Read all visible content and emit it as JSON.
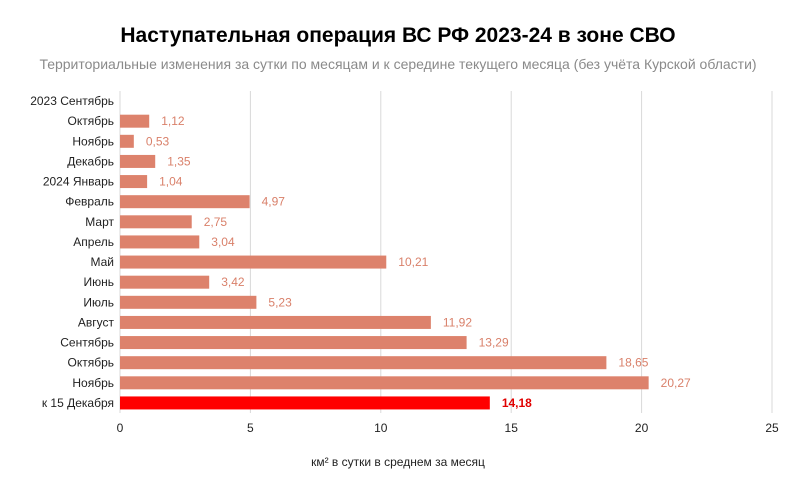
{
  "chart_data": {
    "type": "bar",
    "orientation": "horizontal",
    "title": "Наступательная операция ВС РФ 2023-24 в зоне СВО",
    "subtitle": "Территориальные изменения за сутки по месяцам и к середине текущего месяца (без учёта Курской области)",
    "xlabel": "км² в сутки в среднем за месяц",
    "ylabel": "",
    "xlim": [
      0,
      25
    ],
    "xticks": [
      "0",
      "5",
      "10",
      "15",
      "20",
      "25"
    ],
    "grid": true,
    "categories": [
      "2023 Сентябрь",
      "Октябрь",
      "Ноябрь",
      "Декабрь",
      "2024 Январь",
      "Февраль",
      "Март",
      "Апрель",
      "Май",
      "Июнь",
      "Июль",
      "Август",
      "Сентябрь",
      "Октябрь",
      "Ноябрь",
      "к 15 Декабря"
    ],
    "values": [
      0,
      1.12,
      0.53,
      1.35,
      1.04,
      4.97,
      2.75,
      3.04,
      10.21,
      3.42,
      5.23,
      11.92,
      13.29,
      18.65,
      20.27,
      14.18
    ],
    "value_labels": [
      "",
      "1,12",
      "0,53",
      "1,35",
      "1,04",
      "4,97",
      "2,75",
      "3,04",
      "10,21",
      "3,42",
      "5,23",
      "11,92",
      "13,29",
      "18,65",
      "20,27",
      "14,18"
    ],
    "highlight_index": 15,
    "colors": {
      "bar": "#dd826c",
      "highlight": "#ff0000",
      "label": "#d9806a",
      "grid": "#d9d9d9"
    }
  }
}
